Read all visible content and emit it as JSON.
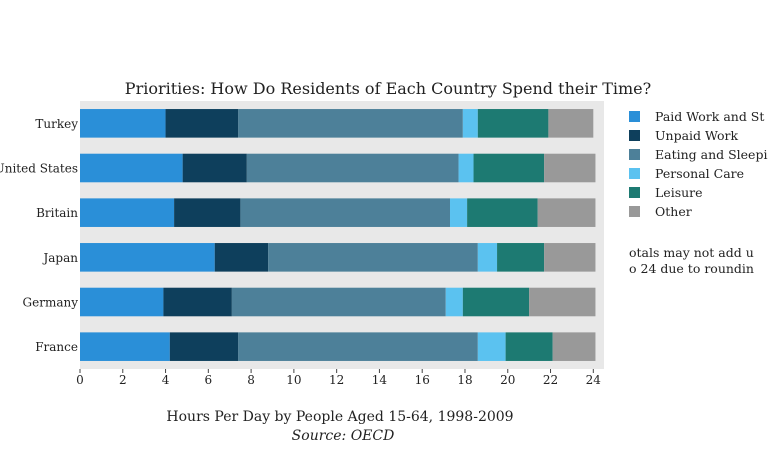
{
  "chart_data": {
    "type": "bar",
    "orientation": "horizontal",
    "stacked": true,
    "title": "Priorities: How Do Residents of Each Country Spend their Time?",
    "xlabel": "Hours Per Day by People Aged 15-64, 1998-2009",
    "source": "Source: OECD",
    "annotation_line1": "otals may not add u",
    "annotation_line2": "o 24 due to roundin",
    "xlim": [
      0,
      24.5
    ],
    "x_ticks": [
      0,
      2,
      4,
      6,
      8,
      10,
      12,
      14,
      16,
      18,
      20,
      22,
      24
    ],
    "grid": false,
    "legend_position": "right",
    "categories": [
      "France",
      "Germany",
      "Japan",
      "Britain",
      "United States",
      "Turkey"
    ],
    "series": [
      {
        "name": "Paid Work and St",
        "color": "#2a8fd8",
        "values": [
          4.2,
          3.9,
          6.3,
          4.4,
          4.8,
          4.0
        ]
      },
      {
        "name": "Unpaid Work",
        "color": "#0e3f5c",
        "values": [
          3.2,
          3.2,
          2.5,
          3.1,
          3.0,
          3.4
        ]
      },
      {
        "name": "Eating and Sleepi",
        "color": "#4d8099",
        "values": [
          11.2,
          10.0,
          9.8,
          9.8,
          9.9,
          10.5
        ]
      },
      {
        "name": "Personal Care",
        "color": "#5bc2f0",
        "values": [
          1.3,
          0.8,
          0.9,
          0.8,
          0.7,
          0.7
        ]
      },
      {
        "name": "Leisure",
        "color": "#1d7a72",
        "values": [
          2.2,
          3.1,
          2.2,
          3.3,
          3.3,
          3.3
        ]
      },
      {
        "name": "Other",
        "color": "#999999",
        "values": [
          2.0,
          3.1,
          2.4,
          2.7,
          2.4,
          2.1
        ]
      }
    ]
  }
}
